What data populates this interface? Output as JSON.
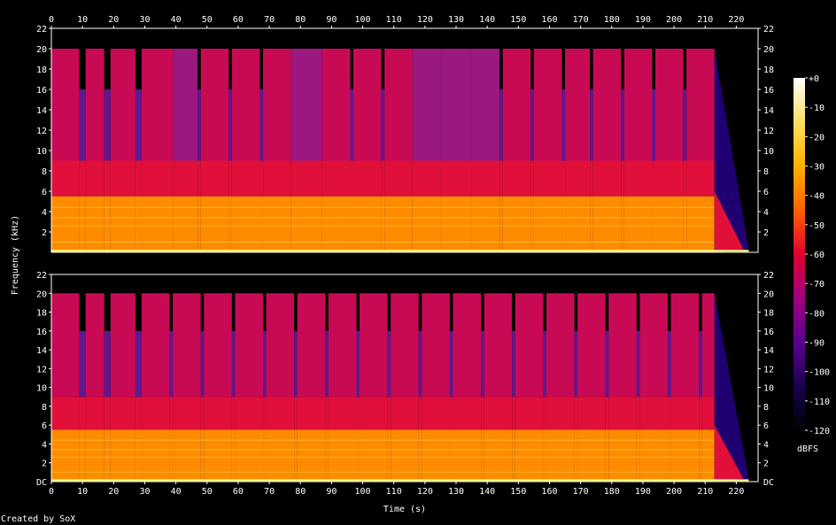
{
  "chart_data": {
    "type": "heatmap",
    "xlabel": "Time (s)",
    "ylabel": "Frequency (kHz)",
    "colorbar_label": "dBFS",
    "credit": "Created by SoX",
    "x_ticks": [
      0,
      10,
      20,
      30,
      40,
      50,
      60,
      70,
      80,
      90,
      100,
      110,
      120,
      130,
      140,
      150,
      160,
      170,
      180,
      190,
      200,
      210,
      220
    ],
    "xlim": [
      0,
      227
    ],
    "y_ticks": [
      2,
      4,
      6,
      8,
      10,
      12,
      14,
      16,
      18,
      20,
      22
    ],
    "ylim": [
      0,
      22
    ],
    "bottom_tick_label": "DC",
    "colorbar_ticks": [
      "+0",
      "-10",
      "-20",
      "-30",
      "-40",
      "-50",
      "-60",
      "-70",
      "-80",
      "-90",
      "-100",
      "-110",
      "-120"
    ],
    "colorbar_range": [
      -120,
      0
    ],
    "channels": [
      {
        "name": "",
        "segments": [
          {
            "t0": 0,
            "t1": 9,
            "level": "bright"
          },
          {
            "t0": 9,
            "t1": 11,
            "level": "dim"
          },
          {
            "t0": 11,
            "t1": 17,
            "level": "bright"
          },
          {
            "t0": 17,
            "t1": 19,
            "level": "dim"
          },
          {
            "t0": 19,
            "t1": 27,
            "level": "bright"
          },
          {
            "t0": 27,
            "t1": 29,
            "level": "dim"
          },
          {
            "t0": 29,
            "t1": 39,
            "level": "bright"
          },
          {
            "t0": 39,
            "t1": 47,
            "level": "mid"
          },
          {
            "t0": 47,
            "t1": 48,
            "level": "dim"
          },
          {
            "t0": 48,
            "t1": 57,
            "level": "bright"
          },
          {
            "t0": 57,
            "t1": 58,
            "level": "dim"
          },
          {
            "t0": 58,
            "t1": 67,
            "level": "bright"
          },
          {
            "t0": 67,
            "t1": 68,
            "level": "dim"
          },
          {
            "t0": 68,
            "t1": 77,
            "level": "bright"
          },
          {
            "t0": 77,
            "t1": 87,
            "level": "mid"
          },
          {
            "t0": 87,
            "t1": 96,
            "level": "bright"
          },
          {
            "t0": 96,
            "t1": 97,
            "level": "dim"
          },
          {
            "t0": 97,
            "t1": 106,
            "level": "bright"
          },
          {
            "t0": 106,
            "t1": 107,
            "level": "dim"
          },
          {
            "t0": 107,
            "t1": 116,
            "level": "bright"
          },
          {
            "t0": 116,
            "t1": 125,
            "level": "mid"
          },
          {
            "t0": 125,
            "t1": 135,
            "level": "mid"
          },
          {
            "t0": 135,
            "t1": 144,
            "level": "mid"
          },
          {
            "t0": 144,
            "t1": 145,
            "level": "dim"
          },
          {
            "t0": 145,
            "t1": 154,
            "level": "bright"
          },
          {
            "t0": 154,
            "t1": 155,
            "level": "dim"
          },
          {
            "t0": 155,
            "t1": 164,
            "level": "bright"
          },
          {
            "t0": 164,
            "t1": 165,
            "level": "dim"
          },
          {
            "t0": 165,
            "t1": 173,
            "level": "bright"
          },
          {
            "t0": 173,
            "t1": 174,
            "level": "dim"
          },
          {
            "t0": 174,
            "t1": 183,
            "level": "bright"
          },
          {
            "t0": 183,
            "t1": 184,
            "level": "dim"
          },
          {
            "t0": 184,
            "t1": 193,
            "level": "bright"
          },
          {
            "t0": 193,
            "t1": 194,
            "level": "dim"
          },
          {
            "t0": 194,
            "t1": 203,
            "level": "bright"
          },
          {
            "t0": 203,
            "t1": 204,
            "level": "dim"
          },
          {
            "t0": 204,
            "t1": 213,
            "level": "bright"
          }
        ]
      },
      {
        "name": "",
        "segments": [
          {
            "t0": 0,
            "t1": 9,
            "level": "bright"
          },
          {
            "t0": 9,
            "t1": 11,
            "level": "dim"
          },
          {
            "t0": 11,
            "t1": 17,
            "level": "bright"
          },
          {
            "t0": 17,
            "t1": 19,
            "level": "dim"
          },
          {
            "t0": 19,
            "t1": 27,
            "level": "bright"
          },
          {
            "t0": 27,
            "t1": 29,
            "level": "dim"
          },
          {
            "t0": 29,
            "t1": 38,
            "level": "bright"
          },
          {
            "t0": 38,
            "t1": 39,
            "level": "dim"
          },
          {
            "t0": 39,
            "t1": 48,
            "level": "bright"
          },
          {
            "t0": 48,
            "t1": 49,
            "level": "dim"
          },
          {
            "t0": 49,
            "t1": 58,
            "level": "bright"
          },
          {
            "t0": 58,
            "t1": 59,
            "level": "dim"
          },
          {
            "t0": 59,
            "t1": 68,
            "level": "bright"
          },
          {
            "t0": 68,
            "t1": 69,
            "level": "dim"
          },
          {
            "t0": 69,
            "t1": 78,
            "level": "bright"
          },
          {
            "t0": 78,
            "t1": 79,
            "level": "dim"
          },
          {
            "t0": 79,
            "t1": 88,
            "level": "bright"
          },
          {
            "t0": 88,
            "t1": 89,
            "level": "dim"
          },
          {
            "t0": 89,
            "t1": 98,
            "level": "bright"
          },
          {
            "t0": 98,
            "t1": 99,
            "level": "dim"
          },
          {
            "t0": 99,
            "t1": 108,
            "level": "bright"
          },
          {
            "t0": 108,
            "t1": 109,
            "level": "dim"
          },
          {
            "t0": 109,
            "t1": 118,
            "level": "bright"
          },
          {
            "t0": 118,
            "t1": 119,
            "level": "dim"
          },
          {
            "t0": 119,
            "t1": 128,
            "level": "bright"
          },
          {
            "t0": 128,
            "t1": 129,
            "level": "dim"
          },
          {
            "t0": 129,
            "t1": 138,
            "level": "bright"
          },
          {
            "t0": 138,
            "t1": 139,
            "level": "dim"
          },
          {
            "t0": 139,
            "t1": 148,
            "level": "bright"
          },
          {
            "t0": 148,
            "t1": 149,
            "level": "dim"
          },
          {
            "t0": 149,
            "t1": 158,
            "level": "bright"
          },
          {
            "t0": 158,
            "t1": 159,
            "level": "dim"
          },
          {
            "t0": 159,
            "t1": 168,
            "level": "bright"
          },
          {
            "t0": 168,
            "t1": 169,
            "level": "dim"
          },
          {
            "t0": 169,
            "t1": 178,
            "level": "bright"
          },
          {
            "t0": 178,
            "t1": 179,
            "level": "dim"
          },
          {
            "t0": 179,
            "t1": 188,
            "level": "bright"
          },
          {
            "t0": 188,
            "t1": 189,
            "level": "dim"
          },
          {
            "t0": 189,
            "t1": 198,
            "level": "bright"
          },
          {
            "t0": 198,
            "t1": 199,
            "level": "dim"
          },
          {
            "t0": 199,
            "t1": 208,
            "level": "bright"
          },
          {
            "t0": 208,
            "t1": 209,
            "level": "dim"
          },
          {
            "t0": 209,
            "t1": 213,
            "level": "bright"
          }
        ]
      }
    ],
    "signal_end_time": 213,
    "signal_fade_end_time": 224
  },
  "colors": {
    "background": "#000000",
    "axis": "#ffffff",
    "low_band": "#ff8c00",
    "mid_band": "#e0103a",
    "upper_band": "#c80a55",
    "dim_band": "#5e1890",
    "hf_cutoff": "#200070",
    "colorbar_stops": [
      "#000000",
      "#1a0050",
      "#5a0090",
      "#a00080",
      "#e00030",
      "#ff6000",
      "#ffb000",
      "#ffe060",
      "#ffffff"
    ]
  }
}
